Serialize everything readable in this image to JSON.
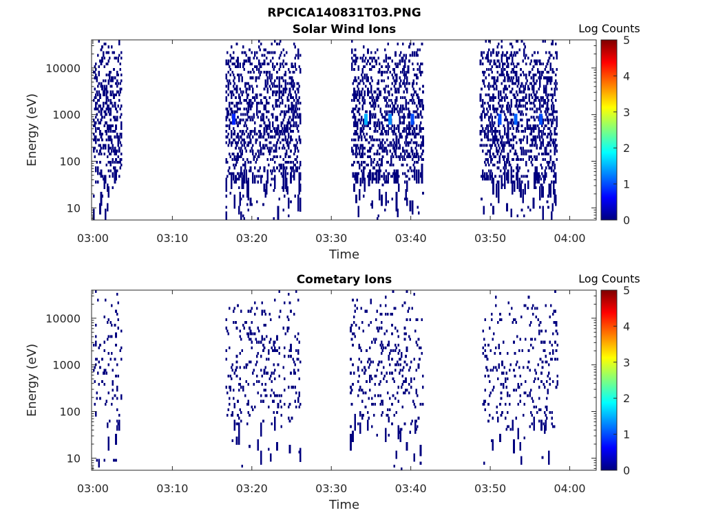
{
  "figure_title": "RPCICA140831T03.PNG",
  "colors": {
    "colormap": [
      "#00007f",
      "#0000ff",
      "#007fff",
      "#00ffff",
      "#7fff7f",
      "#ffff00",
      "#ff7f00",
      "#ff0000",
      "#7f0000"
    ],
    "axis": "#262626",
    "background": "#ffffff"
  },
  "chart_data": [
    {
      "type": "heatmap",
      "title": "Solar Wind Ions",
      "xlabel": "Time",
      "ylabel": "Energy (eV)",
      "x_ticks": [
        "03:00",
        "03:10",
        "03:20",
        "03:30",
        "03:40",
        "03:50",
        "04:00"
      ],
      "xlim": [
        "02:59:50",
        "04:03:20"
      ],
      "y_scale": "log",
      "y_ticks": [
        "10",
        "100",
        "1000",
        "10000"
      ],
      "ylim": [
        5.5,
        40000
      ],
      "colorbar": {
        "label": "Log Counts",
        "ticks": [
          "0",
          "1",
          "2",
          "3",
          "4",
          "5"
        ],
        "range": [
          0,
          5
        ],
        "position": "right"
      },
      "grid": false,
      "bursts": [
        {
          "start": "03:00:00",
          "end": "03:03:30"
        },
        {
          "start": "03:16:40",
          "end": "03:26:00"
        },
        {
          "start": "03:32:30",
          "end": "03:41:30"
        },
        {
          "start": "03:48:40",
          "end": "03:58:20"
        }
      ],
      "highlights": [
        {
          "time": "03:34:20",
          "energy_eV": 800,
          "log_counts": 1.5
        },
        {
          "time": "03:37:20",
          "energy_eV": 800,
          "log_counts": 1.3
        },
        {
          "time": "03:40:10",
          "energy_eV": 800,
          "log_counts": 1.0
        },
        {
          "time": "03:51:10",
          "energy_eV": 800,
          "log_counts": 1.0
        },
        {
          "time": "03:53:10",
          "energy_eV": 800,
          "log_counts": 1.1
        },
        {
          "time": "03:56:20",
          "energy_eV": 800,
          "log_counts": 1.0
        },
        {
          "time": "03:17:40",
          "energy_eV": 800,
          "log_counts": 0.8
        }
      ],
      "background_log_counts": 0
    },
    {
      "type": "heatmap",
      "title": "Cometary Ions",
      "xlabel": "Time",
      "ylabel": "Energy (eV)",
      "x_ticks": [
        "03:00",
        "03:10",
        "03:20",
        "03:30",
        "03:40",
        "03:50",
        "04:00"
      ],
      "xlim": [
        "02:59:50",
        "04:03:20"
      ],
      "y_scale": "log",
      "y_ticks": [
        "10",
        "100",
        "1000",
        "10000"
      ],
      "ylim": [
        5.5,
        40000
      ],
      "colorbar": {
        "label": "Log Counts",
        "ticks": [
          "0",
          "1",
          "2",
          "3",
          "4",
          "5"
        ],
        "range": [
          0,
          5
        ],
        "position": "right"
      },
      "grid": false,
      "bursts": [
        {
          "start": "03:00:00",
          "end": "03:03:30"
        },
        {
          "start": "03:16:40",
          "end": "03:26:00"
        },
        {
          "start": "03:32:20",
          "end": "03:41:30"
        },
        {
          "start": "03:49:00",
          "end": "03:58:20"
        }
      ],
      "highlights": [],
      "background_log_counts": 0
    }
  ]
}
